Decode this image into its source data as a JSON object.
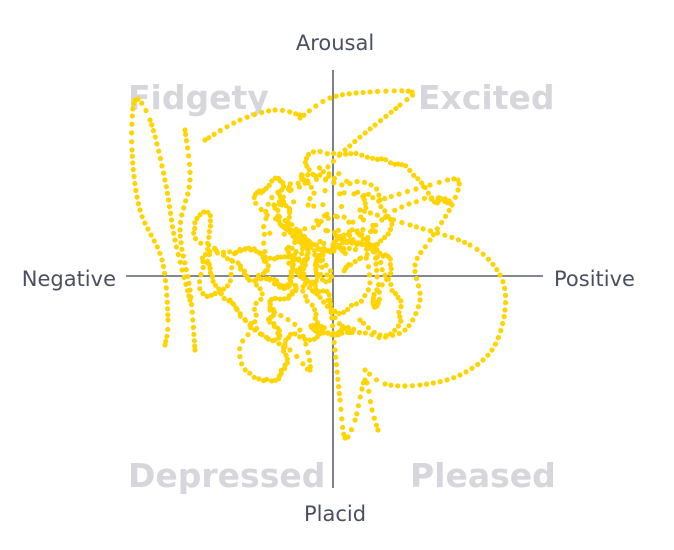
{
  "labels": {
    "top": "Arousal",
    "bottom": "Placid",
    "left": "Negative",
    "right": "Positive"
  },
  "quadrants": {
    "top_left": "Fidgety",
    "top_right": "Excited",
    "bottom_left": "Depressed",
    "bottom_right": "Pleased"
  },
  "colors": {
    "trace": "#ffd400",
    "axis": "#5c6173",
    "axis_text": "#4a4f63",
    "quadrant_text": "#d6d6dc"
  }
}
